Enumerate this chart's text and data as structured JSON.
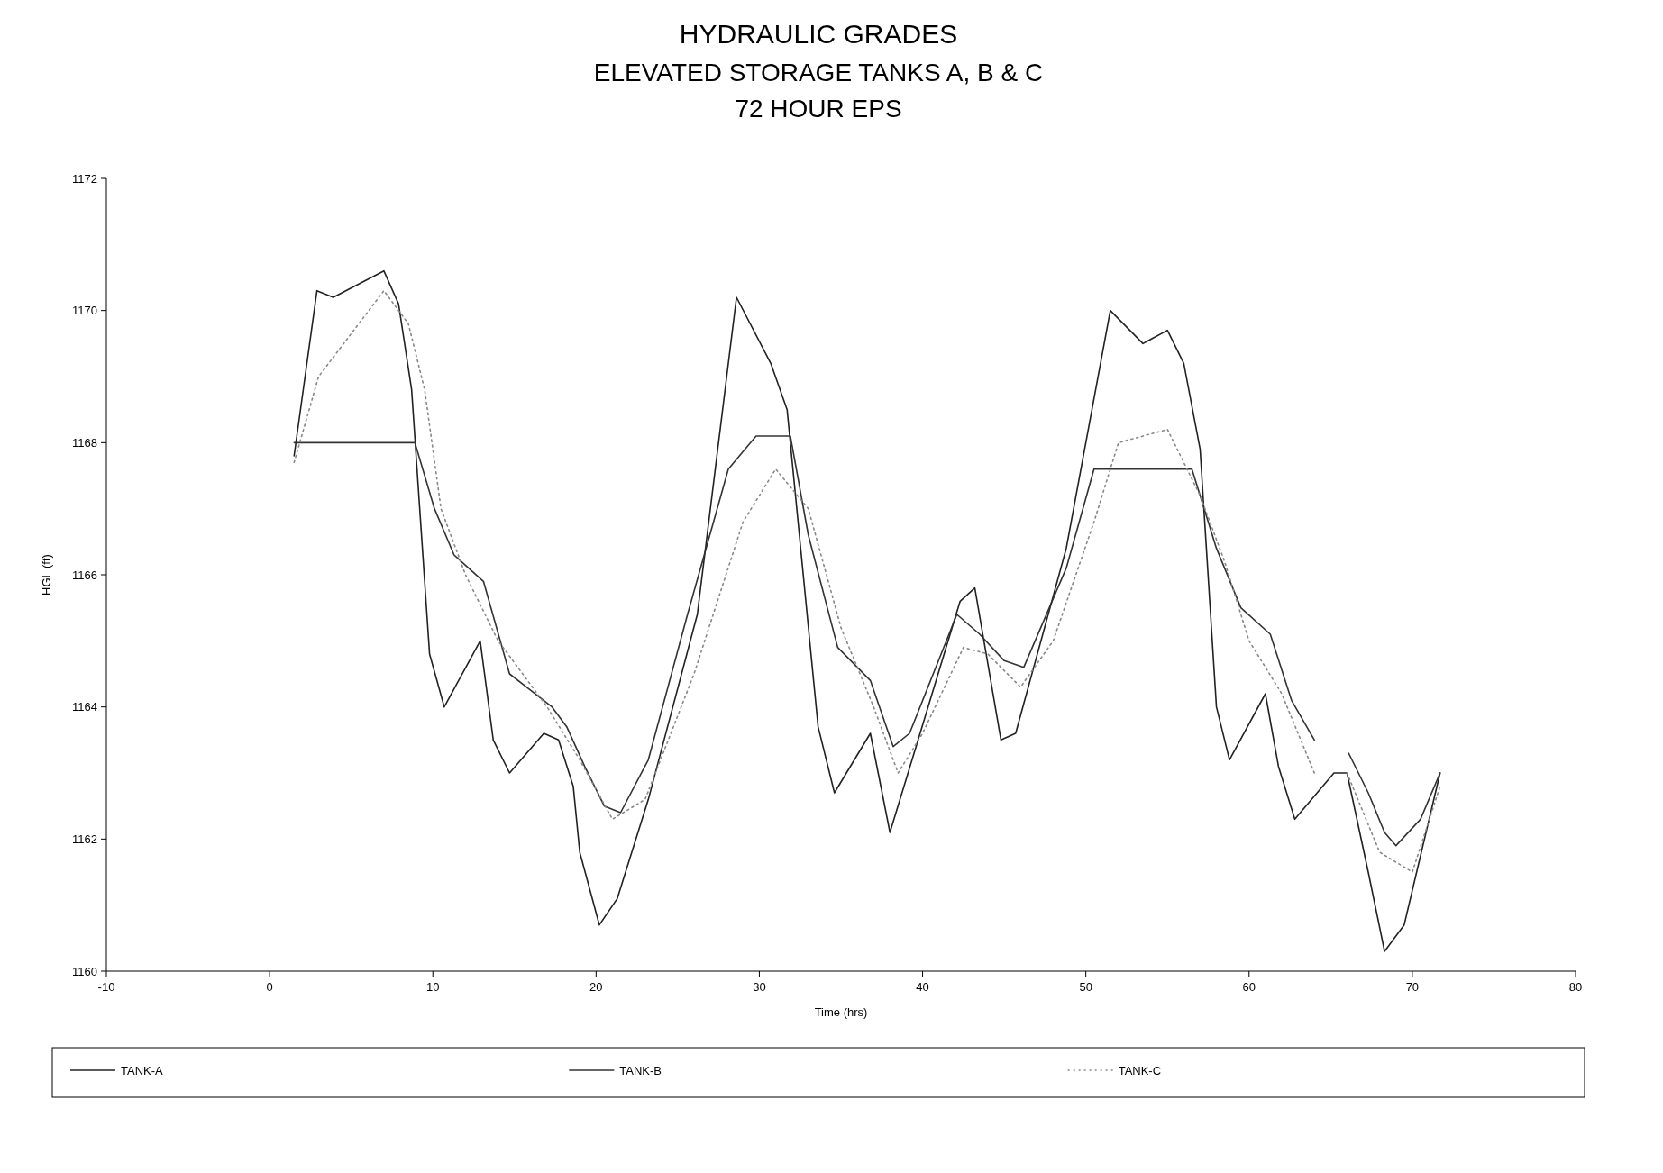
{
  "chart_data": {
    "type": "line",
    "title": "HYDRAULIC GRADES",
    "subtitle": "ELEVATED STORAGE TANKS A, B & C\n72 HOUR EPS",
    "xlabel": "Time (hrs)",
    "ylabel": "HGL (ft)",
    "xlim": [
      -10,
      80
    ],
    "xticks": [
      -10,
      0,
      10,
      20,
      30,
      40,
      50,
      60,
      70,
      80
    ],
    "ylim": [
      1160,
      1172
    ],
    "yticks": [
      1160,
      1162,
      1164,
      1166,
      1168,
      1170,
      1172
    ],
    "grid": false,
    "legend": "bottom",
    "series": [
      {
        "name": "TANK-A",
        "color": "#222222",
        "line_style": "solid",
        "x": [
          1.5,
          2.9,
          3.9,
          7.0,
          7.9,
          8.7,
          9.8,
          10.7,
          12.9,
          13.7,
          14.7,
          16.8,
          17.7,
          18.6,
          19.0,
          20.2,
          21.3,
          23.2,
          26.2,
          28.6,
          30.7,
          31.7,
          33.6,
          34.6,
          36.8,
          38.0,
          39.6,
          42.3,
          43.2,
          44.8,
          45.7,
          48.8,
          51.5,
          53.5,
          55.0,
          56.0,
          57.0,
          58.0,
          58.8,
          61.0,
          61.8,
          62.8,
          65.2,
          66.0,
          67.3,
          68.3,
          69.5,
          71.7
        ],
        "values": [
          1167.8,
          1170.3,
          1170.2,
          1170.6,
          1170.1,
          1168.8,
          1164.8,
          1164.0,
          1165.0,
          1163.5,
          1163.0,
          1163.6,
          1163.5,
          1162.8,
          1161.8,
          1160.7,
          1161.1,
          1162.6,
          1165.4,
          1170.2,
          1169.2,
          1168.5,
          1163.7,
          1162.7,
          1163.6,
          1162.1,
          1163.4,
          1165.6,
          1165.8,
          1163.5,
          1163.6,
          1166.4,
          1170.0,
          1169.5,
          1169.7,
          1169.2,
          1167.9,
          1164.0,
          1163.2,
          1164.2,
          1163.1,
          1162.3,
          1163.0,
          1163.0,
          1161.5,
          1160.3,
          1160.7,
          1163.0
        ]
      },
      {
        "name": "TANK-B",
        "color": "#333333",
        "line_style": "solid",
        "x": [
          1.5,
          8.9,
          10.1,
          11.3,
          13.1,
          14.7,
          17.3,
          18.2,
          19.3,
          20.5,
          21.5,
          23.2,
          25.6,
          28.1,
          29.8,
          31.9,
          33.0,
          34.8,
          36.8,
          38.2,
          39.2,
          42.1,
          43.5,
          45.0,
          46.2,
          48.8,
          50.5,
          56.5,
          58.0,
          59.5,
          61.3,
          62.6,
          64.0,
          65.0,
          66.1,
          67.3,
          68.3,
          69.0,
          70.5,
          71.7
        ],
        "values": [
          1168.0,
          1168.0,
          1167.0,
          1166.3,
          1165.9,
          1164.5,
          1164.0,
          1163.7,
          1163.1,
          1162.5,
          1162.4,
          1163.2,
          1165.4,
          1167.6,
          1168.1,
          1168.1,
          1166.6,
          1164.9,
          1164.4,
          1163.4,
          1163.6,
          1165.4,
          1165.1,
          1164.7,
          1164.6,
          1166.1,
          1167.6,
          1167.6,
          1166.4,
          1165.5,
          1165.1,
          1164.1,
          1163.5,
          null,
          1163.3,
          1162.7,
          1162.1,
          1161.9,
          1162.3,
          1163.0
        ]
      },
      {
        "name": "TANK-C",
        "color": "#888888",
        "line_style": "dotted",
        "x": [
          1.5,
          3.0,
          7.0,
          8.5,
          9.5,
          10.5,
          12.0,
          14.0,
          17.0,
          19.0,
          21.0,
          23.0,
          26.0,
          29.0,
          31.0,
          33.0,
          35.0,
          37.0,
          38.5,
          40.0,
          42.5,
          44.0,
          46.0,
          48.0,
          50.5,
          52.0,
          55.0,
          57.0,
          58.5,
          60.0,
          62.0,
          64.0,
          65.0,
          66.0,
          68.0,
          70.0,
          71.7
        ],
        "values": [
          1167.7,
          1169.0,
          1170.3,
          1169.8,
          1168.8,
          1167.0,
          1166.0,
          1165.0,
          1164.0,
          1163.2,
          1162.3,
          1162.6,
          1164.5,
          1166.8,
          1167.6,
          1167.0,
          1165.2,
          1164.0,
          1163.0,
          1163.6,
          1164.9,
          1164.8,
          1164.3,
          1165.0,
          1166.8,
          1168.0,
          1168.2,
          1167.2,
          1166.2,
          1165.0,
          1164.2,
          1163.0,
          null,
          1163.0,
          1161.8,
          1161.5,
          1162.8
        ]
      }
    ]
  }
}
